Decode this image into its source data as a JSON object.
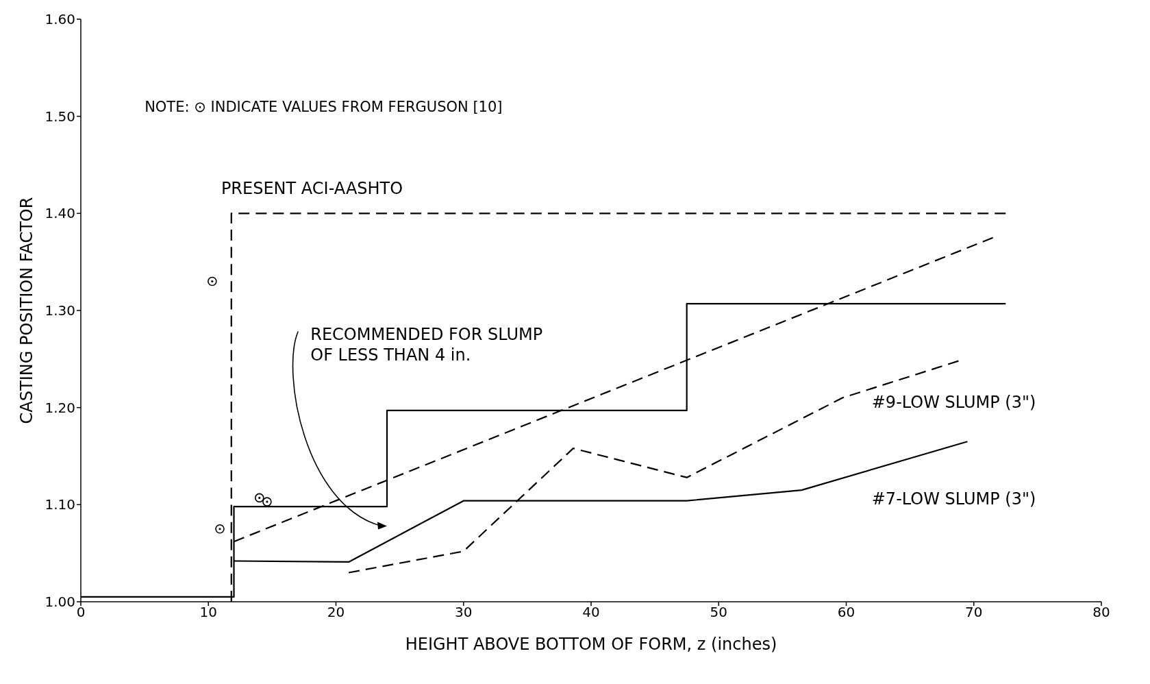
{
  "chart_data": {
    "type": "line",
    "xlabel": "HEIGHT ABOVE BOTTOM OF FORM,  z (inches)",
    "ylabel": "CASTING POSITION FACTOR",
    "xlim": [
      0,
      80
    ],
    "xticks": [
      0,
      10,
      20,
      30,
      40,
      50,
      60,
      70,
      80
    ],
    "ylim": [
      1.0,
      1.6
    ],
    "yticks": [
      {
        "value": 1.0,
        "label": "1.00"
      },
      {
        "value": 1.1,
        "label": "1.10"
      },
      {
        "value": 1.2,
        "label": "1.20"
      },
      {
        "value": 1.3,
        "label": "1.30"
      },
      {
        "value": 1.4,
        "label": "1.40"
      },
      {
        "value": 1.5,
        "label": "1.50"
      },
      {
        "value": 1.6,
        "label": "1.60"
      }
    ],
    "annotations": [
      "NOTE:  ⊙  INDICATE VALUES FROM FERGUSON [10]"
    ],
    "series": [
      {
        "name": "PRESENT ACI-AASHTO",
        "color": "#000000",
        "line_style": "dashed",
        "x": [
          11.8,
          11.8,
          72.5
        ],
        "values": [
          1.0,
          1.4,
          1.4
        ]
      },
      {
        "name": "RECOMMENDED FOR SLUMP OF LESS THAN 4 in.",
        "color": "#000000",
        "line_style": "solid",
        "x": [
          0,
          12,
          12,
          24,
          24,
          47.5,
          47.5,
          72.5
        ],
        "values": [
          1.005,
          1.005,
          1.098,
          1.098,
          1.197,
          1.197,
          1.307,
          1.307
        ]
      },
      {
        "color": "#000000",
        "line_style": "dashed",
        "x": [
          12,
          71.5
        ],
        "values": [
          1.062,
          1.375
        ]
      },
      {
        "name": "#9-LOW SLUMP (3\")",
        "color": "#000000",
        "line_style": "dashed",
        "x": [
          21,
          30,
          38.6,
          47.5,
          59.7,
          68.8
        ],
        "values": [
          1.03,
          1.052,
          1.158,
          1.128,
          1.21,
          1.248
        ]
      },
      {
        "name": "#7-LOW SLUMP (3\")",
        "color": "#000000",
        "line_style": "solid",
        "x": [
          12,
          21,
          30,
          47.5,
          56.5,
          69.5
        ],
        "values": [
          1.042,
          1.041,
          1.104,
          1.104,
          1.115,
          1.165
        ]
      },
      {
        "color": "#000000",
        "type": "scatter",
        "marker": "circle",
        "x": [
          10.3,
          10.9,
          14,
          14.6
        ],
        "values": [
          1.33,
          1.075,
          1.107,
          1.103
        ]
      }
    ]
  }
}
